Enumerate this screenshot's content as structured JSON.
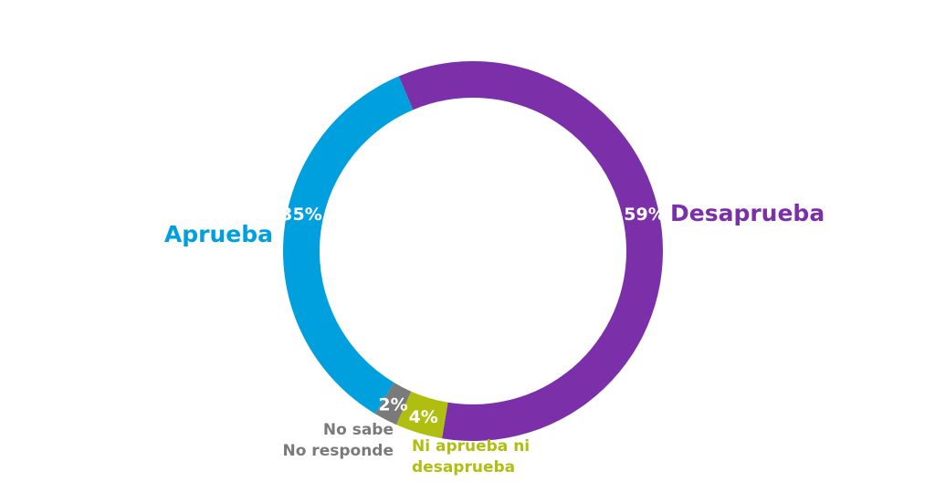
{
  "chart_data": {
    "type": "pie",
    "title": "",
    "slices": [
      {
        "label": "Desaprueba",
        "value": 59,
        "value_label": "59%",
        "color": "#7b2fa8"
      },
      {
        "label": "Ni aprueba ni desaprueba",
        "label_lines": [
          "Ni aprueba ni",
          "desaprueba"
        ],
        "value": 4,
        "value_label": "4%",
        "color": "#b0be0f"
      },
      {
        "label": "No sabe No responde",
        "label_lines": [
          "No sabe",
          "No responde"
        ],
        "value": 2,
        "value_label": "2%",
        "color": "#7a7a7a"
      },
      {
        "label": "Aprueba",
        "value": 35,
        "value_label": "35%",
        "color": "#00a0df"
      }
    ],
    "label_colors": {
      "Desaprueba": "#7b2fa8",
      "Aprueba": "#00a0df",
      "No sabe No responde": "#7a7a7a",
      "Ni aprueba ni desaprueba": "#b0be0f"
    },
    "legend": "none"
  }
}
